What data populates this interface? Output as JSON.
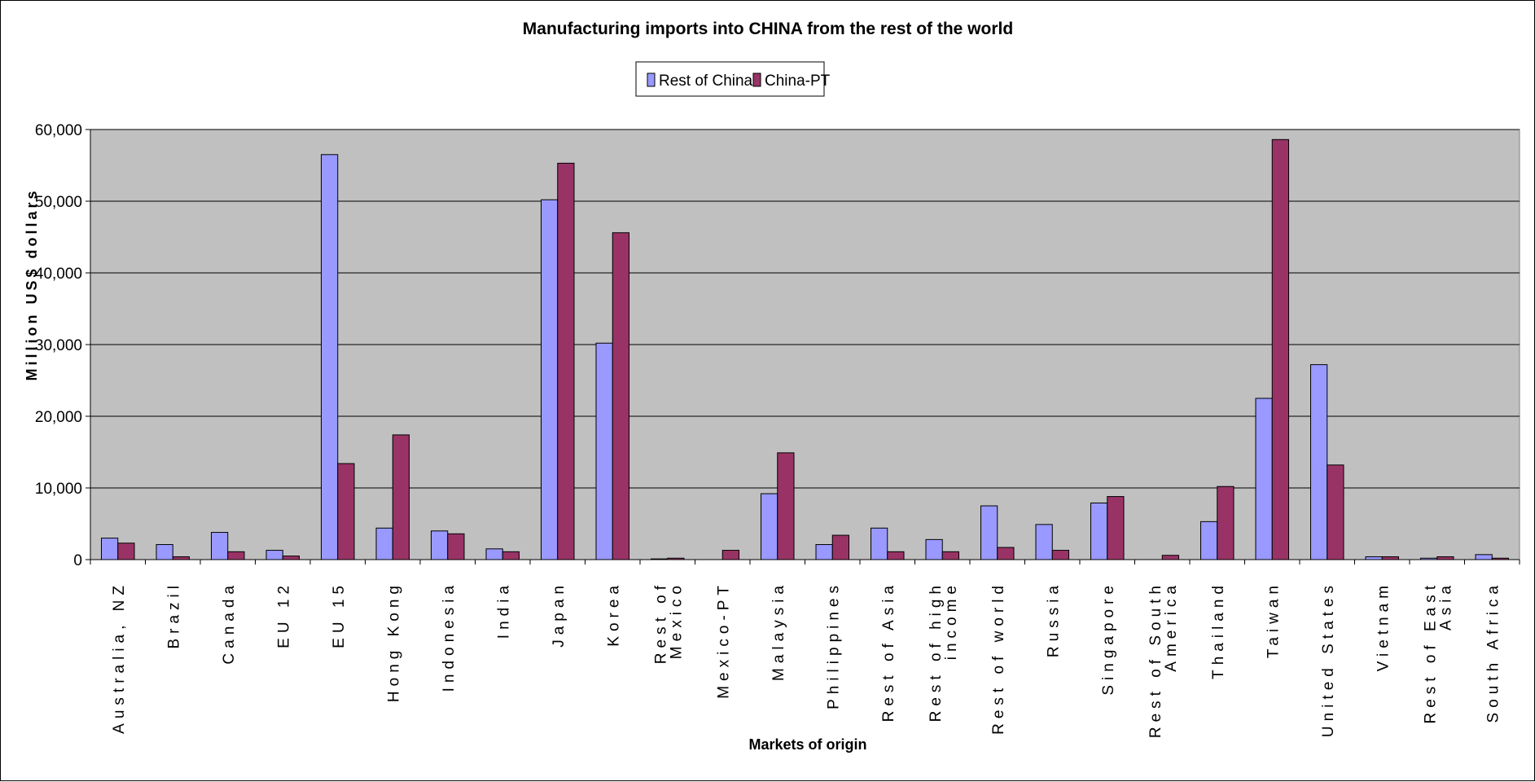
{
  "chart_data": {
    "type": "bar",
    "title": "Manufacturing imports into CHINA from the rest of the world",
    "xlabel": "Markets of origin",
    "ylabel": "Million US$ dollars",
    "ylim": [
      0,
      60000
    ],
    "yticks": [
      {
        "value": 0,
        "label": "0"
      },
      {
        "value": 10000,
        "label": "10,000"
      },
      {
        "value": 20000,
        "label": "20,000"
      },
      {
        "value": 30000,
        "label": "30,000"
      },
      {
        "value": 40000,
        "label": "40,000"
      },
      {
        "value": 50000,
        "label": "50,000"
      },
      {
        "value": 60000,
        "label": "60,000"
      }
    ],
    "grid": true,
    "legend_position": "top-center",
    "plot_background": "#c0c0c0",
    "categories": [
      [
        "Australia, NZ"
      ],
      [
        "Brazil"
      ],
      [
        "Canada"
      ],
      [
        "EU 12"
      ],
      [
        "EU 15"
      ],
      [
        "Hong Kong"
      ],
      [
        "Indonesia"
      ],
      [
        "India"
      ],
      [
        "Japan"
      ],
      [
        "Korea"
      ],
      [
        "Rest of",
        "Mexico"
      ],
      [
        "Mexico-PT"
      ],
      [
        "Malaysia"
      ],
      [
        "Philippines"
      ],
      [
        "Rest of Asia"
      ],
      [
        "Rest of high",
        "income"
      ],
      [
        "Rest of world"
      ],
      [
        "Russia"
      ],
      [
        "Singapore"
      ],
      [
        "Rest of South",
        "America"
      ],
      [
        "Thailand"
      ],
      [
        "Taiwan"
      ],
      [
        "United States"
      ],
      [
        "Vietnam"
      ],
      [
        "Rest of East",
        "Asia"
      ],
      [
        "South Africa"
      ]
    ],
    "series": [
      {
        "name": "Rest of China",
        "color": "#9999ff",
        "values": [
          3000,
          2100,
          3800,
          1300,
          56500,
          4400,
          4000,
          1500,
          50200,
          30200,
          100,
          0,
          9200,
          2100,
          4400,
          2800,
          7500,
          4900,
          7900,
          0,
          5300,
          22500,
          27200,
          400,
          200,
          700
        ]
      },
      {
        "name": "China-PT",
        "color": "#993366",
        "values": [
          2300,
          400,
          1100,
          500,
          13400,
          17400,
          3600,
          1100,
          55300,
          45600,
          200,
          1300,
          14900,
          3400,
          1100,
          1100,
          1700,
          1300,
          8800,
          600,
          10200,
          58600,
          13200,
          400,
          400,
          200
        ]
      }
    ]
  }
}
